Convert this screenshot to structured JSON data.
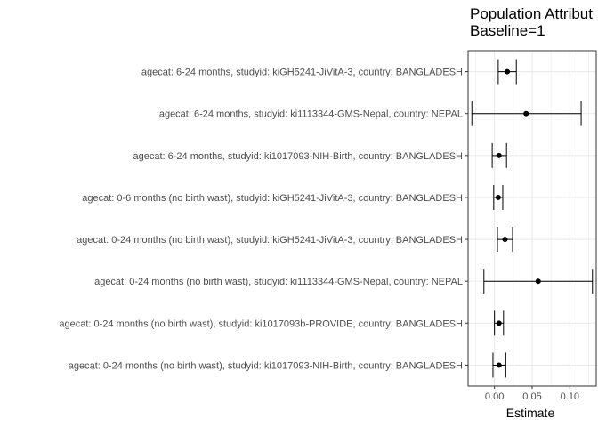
{
  "chart_data": {
    "type": "forest",
    "title": "Population Attribut",
    "subtitle": "Baseline=1",
    "xlabel": "Estimate",
    "ylabel": "",
    "xlim": [
      -0.035,
      0.135
    ],
    "x_ticks": [
      0.0,
      0.05,
      0.1
    ],
    "x_tick_labels": [
      "0.00",
      "0.05",
      "0.10"
    ],
    "grid": true,
    "colors": {
      "mark": "#000000",
      "grid": "#ebebeb",
      "panel_border": "#333333"
    },
    "rows": [
      {
        "label": "agecat: 6-24 months, studyid: kiGH5241-JiVitA-3, country: BANGLADESH",
        "estimate": 0.017,
        "lower": 0.005,
        "upper": 0.029
      },
      {
        "label": "agecat: 6-24 months, studyid: ki1113344-GMS-Nepal, country: NEPAL",
        "estimate": 0.042,
        "lower": -0.03,
        "upper": 0.115
      },
      {
        "label": "agecat: 6-24 months, studyid: ki1017093-NIH-Birth, country: BANGLADESH",
        "estimate": 0.006,
        "lower": -0.003,
        "upper": 0.016
      },
      {
        "label": "agecat: 0-6 months (no birth wast), studyid: kiGH5241-JiVitA-3, country: BANGLADESH",
        "estimate": 0.005,
        "lower": -0.001,
        "upper": 0.011
      },
      {
        "label": "agecat: 0-24 months (no birth wast), studyid: kiGH5241-JiVitA-3, country: BANGLADESH",
        "estimate": 0.014,
        "lower": 0.004,
        "upper": 0.024
      },
      {
        "label": "agecat: 0-24 months (no birth wast), studyid: ki1113344-GMS-Nepal, country: NEPAL",
        "estimate": 0.058,
        "lower": -0.014,
        "upper": 0.13
      },
      {
        "label": "agecat: 0-24 months (no birth wast), studyid: ki1017093b-PROVIDE, country: BANGLADESH",
        "estimate": 0.006,
        "lower": 0.0,
        "upper": 0.012
      },
      {
        "label": "agecat: 0-24 months (no birth wast), studyid: ki1017093-NIH-Birth, country: BANGLADESH",
        "estimate": 0.006,
        "lower": -0.002,
        "upper": 0.015
      }
    ]
  }
}
